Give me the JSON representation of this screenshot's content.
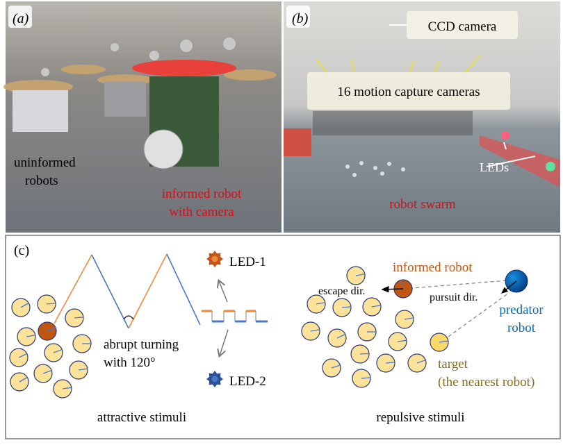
{
  "panel_a": {
    "label": "(a)",
    "uninformed_line1": "uninformed",
    "uninformed_line2": "robots",
    "informed_line1": "informed robot",
    "informed_line2": "with camera"
  },
  "panel_b": {
    "label": "(b)",
    "ccd_camera": "CCD camera",
    "motion_cameras": "16 motion capture cameras",
    "leds": "LEDs",
    "robot_swarm": "robot swarm"
  },
  "panel_c": {
    "label": "(c)",
    "turn_line1": "abrupt turning",
    "turn_line2": "with 120°",
    "led1": "LED-1",
    "led2": "LED-2",
    "attractive": "attractive stimuli",
    "informed_robot": "informed robot",
    "escape": "escape dir.",
    "pursuit": "pursuit dir.",
    "predator_line1": "predator",
    "predator_line2": "robot",
    "target_line1": "target",
    "target_line2": "(the nearest robot)",
    "repulsive": "repulsive stimuli"
  },
  "colors": {
    "robot_fill": "#fde39a",
    "informed": "#c0560f",
    "orange_path": "#f08a3a",
    "blue_path": "#4a78c8",
    "predator": "#0a6ac0",
    "target": "#fcd868",
    "target_text": "#8a6d1a",
    "red_text": "#d0101a"
  }
}
